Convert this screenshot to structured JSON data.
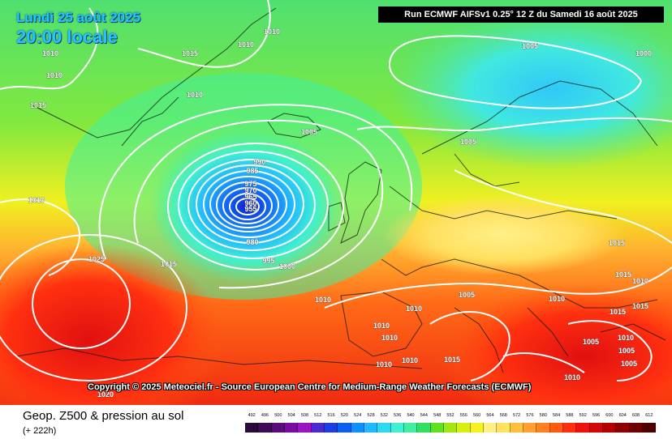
{
  "header": {
    "date_line_1": "Lundi 25 août 2025",
    "date_line_2": "20:00 locale",
    "run_info": "Run ECMWF AIFSv1 0.25° 12 Z du Samedi 16 août 2025"
  },
  "copyright": "Copyright © 2025 Meteociel.fr - Source European Centre for Medium-Range Weather Forecasts (ECMWF)",
  "footer": {
    "product_title": "Geop. Z500 & pression au sol",
    "forecast_offset": "(+ 222h)"
  },
  "scale": {
    "labels": [
      "492",
      "496",
      "500",
      "504",
      "508",
      "512",
      "516",
      "520",
      "524",
      "528",
      "532",
      "536",
      "540",
      "544",
      "548",
      "552",
      "556",
      "560",
      "564",
      "568",
      "572",
      "576",
      "580",
      "584",
      "588",
      "592",
      "596",
      "600",
      "604",
      "608",
      "612"
    ],
    "colors": [
      "#2a0a3a",
      "#3d0a55",
      "#5a0a7a",
      "#7a0aa0",
      "#9a14c4",
      "#4a2ad0",
      "#1f3ee0",
      "#1060f0",
      "#1090ff",
      "#20b8ff",
      "#30d8f0",
      "#40f0d0",
      "#40f0a0",
      "#30e060",
      "#60e020",
      "#a0e810",
      "#d8f010",
      "#f8f020",
      "#fff088",
      "#ffe060",
      "#ffc040",
      "#ffa030",
      "#ff8020",
      "#ff5a10",
      "#ff3010",
      "#f01010",
      "#d00808",
      "#b00000",
      "#900000",
      "#700000",
      "#500000"
    ]
  },
  "isobar_labels": [
    {
      "text": "1010"
    },
    {
      "text": "1010"
    },
    {
      "text": "1015"
    },
    {
      "text": "1010"
    },
    {
      "text": "1015"
    },
    {
      "text": "1010"
    },
    {
      "text": "1010"
    },
    {
      "text": "1005"
    },
    {
      "text": "990"
    },
    {
      "text": "985"
    },
    {
      "text": "975"
    },
    {
      "text": "970"
    },
    {
      "text": "965"
    },
    {
      "text": "960"
    },
    {
      "text": "955"
    },
    {
      "text": "980"
    },
    {
      "text": "995"
    },
    {
      "text": "1000"
    },
    {
      "text": "1015"
    },
    {
      "text": "1025"
    },
    {
      "text": "1010"
    },
    {
      "text": "1005"
    },
    {
      "text": "1005"
    },
    {
      "text": "1000"
    },
    {
      "text": "1015"
    },
    {
      "text": "1015"
    },
    {
      "text": "1010"
    },
    {
      "text": "1005"
    },
    {
      "text": "1010"
    },
    {
      "text": "1010"
    },
    {
      "text": "1010"
    },
    {
      "text": "1010"
    },
    {
      "text": "1010"
    },
    {
      "text": "1010"
    },
    {
      "text": "1015"
    },
    {
      "text": "1010"
    },
    {
      "text": "1015"
    },
    {
      "text": "1010"
    },
    {
      "text": "1005"
    },
    {
      "text": "1005"
    },
    {
      "text": "1005"
    },
    {
      "text": "1010"
    },
    {
      "text": "1015"
    },
    {
      "text": "1020"
    }
  ]
}
